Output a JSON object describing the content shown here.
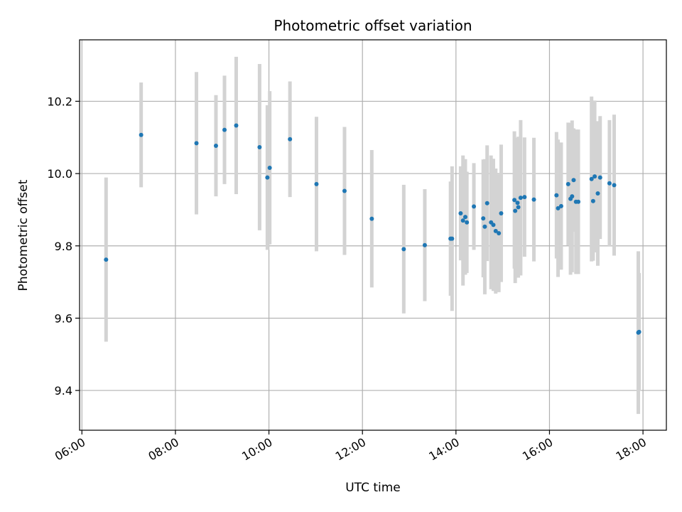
{
  "chart_data": {
    "type": "scatter",
    "title": "Photometric offset variation",
    "xlabel": "UTC time",
    "ylabel": "Photometric offset",
    "xlim": [
      "05:57",
      "18:30"
    ],
    "ylim": [
      9.29,
      10.37
    ],
    "x_ticks": [
      "06:00",
      "08:00",
      "10:00",
      "12:00",
      "14:00",
      "16:00",
      "18:00"
    ],
    "y_ticks": [
      9.4,
      9.6,
      9.8,
      10.0,
      10.2
    ],
    "y_tick_labels": [
      "9.4",
      "9.6",
      "9.8",
      "10.0",
      "10.2"
    ],
    "grid": true,
    "colors": {
      "point": "#1f77b4",
      "errorbar": "#d3d3d3",
      "grid": "#b0b0b0"
    },
    "series": [
      {
        "x": [
          "06:31",
          "07:16",
          "08:27",
          "08:52",
          "09:03",
          "09:18",
          "09:48",
          "09:58",
          "10:01",
          "10:27",
          "11:01",
          "11:37",
          "12:12",
          "12:53",
          "13:20",
          "13:53",
          "13:55",
          "14:06",
          "14:09",
          "14:12",
          "14:14",
          "14:23",
          "14:35",
          "14:37",
          "14:40",
          "14:45",
          "14:48",
          "14:51",
          "14:55",
          "14:58",
          "15:15",
          "15:16",
          "15:19",
          "15:20",
          "15:23",
          "15:28",
          "15:40",
          "16:09",
          "16:11",
          "16:15",
          "16:24",
          "16:27",
          "16:29",
          "16:31",
          "16:34",
          "16:37",
          "16:54",
          "16:56",
          "16:58",
          "17:02",
          "17:05",
          "17:17",
          "17:23",
          "17:54",
          "17:55"
        ],
        "y": [
          9.762,
          10.107,
          10.084,
          10.077,
          10.121,
          10.133,
          10.073,
          9.989,
          10.016,
          10.095,
          9.971,
          9.952,
          9.875,
          9.791,
          9.802,
          9.82,
          9.82,
          9.89,
          9.87,
          9.88,
          9.865,
          9.909,
          9.876,
          9.853,
          9.918,
          9.865,
          9.858,
          9.841,
          9.835,
          9.89,
          9.927,
          9.897,
          9.919,
          9.907,
          9.933,
          9.935,
          9.928,
          9.94,
          9.904,
          9.91,
          9.971,
          9.93,
          9.937,
          9.982,
          9.922,
          9.922,
          9.985,
          9.924,
          9.992,
          9.945,
          9.989,
          9.973,
          9.968,
          9.56,
          9.562
        ],
        "yerr": [
          0.227,
          0.145,
          0.197,
          0.14,
          0.15,
          0.19,
          0.23,
          0.2,
          0.212,
          0.16,
          0.186,
          0.177,
          0.19,
          0.178,
          0.155,
          0.158,
          0.2,
          0.13,
          0.18,
          0.16,
          0.14,
          0.12,
          0.163,
          0.187,
          0.16,
          0.185,
          0.183,
          0.173,
          0.163,
          0.19,
          0.19,
          0.2,
          0.18,
          0.195,
          0.215,
          0.165,
          0.171,
          0.175,
          0.19,
          0.176,
          0.17,
          0.21,
          0.21,
          0.143,
          0.2,
          0.2,
          0.228,
          0.165,
          0.21,
          0.2,
          0.17,
          0.175,
          0.195,
          0.225,
          0.163
        ]
      }
    ]
  }
}
